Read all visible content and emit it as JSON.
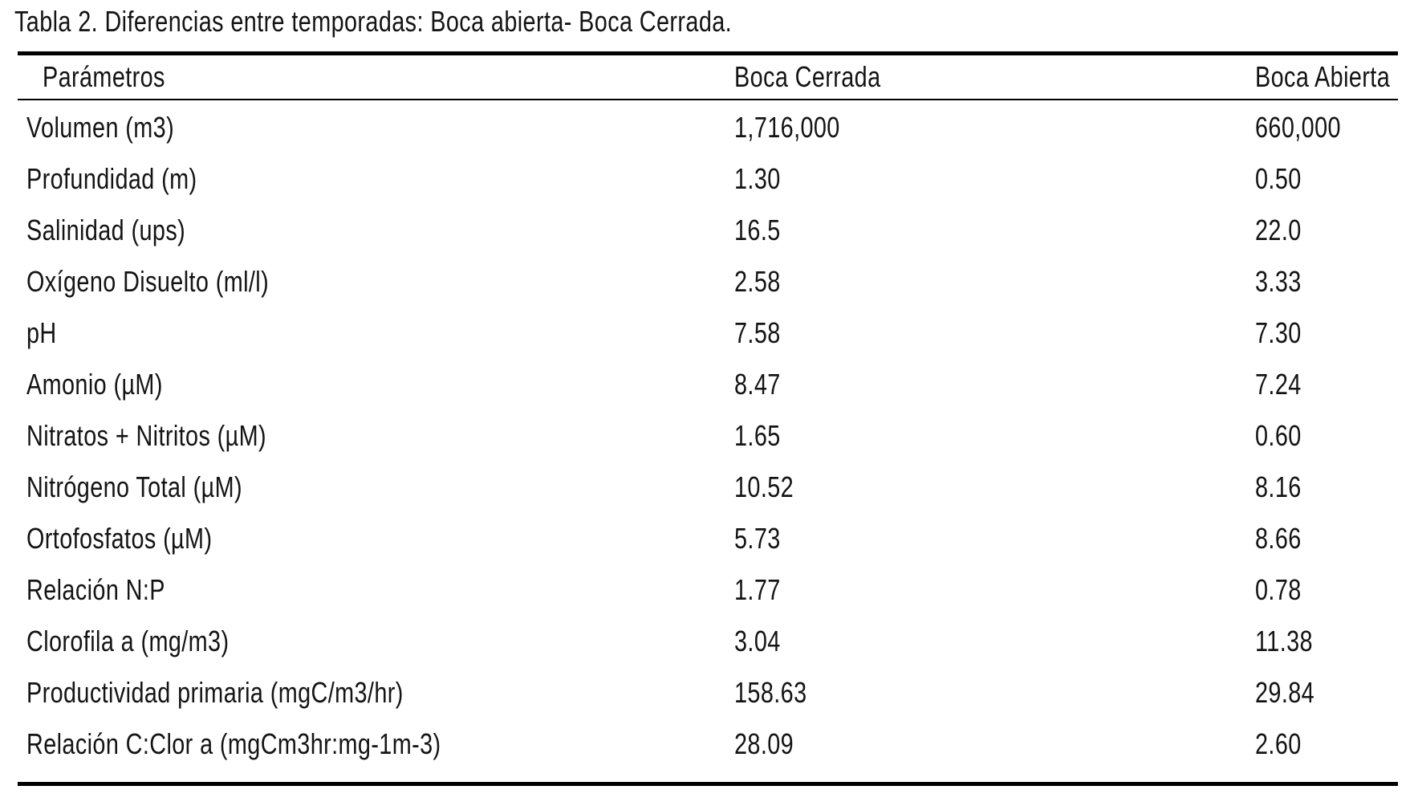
{
  "page": {
    "title": "Tabla 2. Diferencias entre temporadas: Boca abierta- Boca Cerrada."
  },
  "table": {
    "columns": [
      "Parámetros",
      "Boca Cerrada",
      "Boca Abierta"
    ],
    "rows": [
      {
        "param": "Volumen (m3)",
        "cerrada": "1,716,000",
        "abierta": "660,000"
      },
      {
        "param": "Profundidad (m)",
        "cerrada": "1.30",
        "abierta": "0.50"
      },
      {
        "param": "Salinidad (ups)",
        "cerrada": "16.5",
        "abierta": "22.0"
      },
      {
        "param": "Oxígeno Disuelto (ml/l)",
        "cerrada": "2.58",
        "abierta": "3.33"
      },
      {
        "param": "pH",
        "cerrada": "7.58",
        "abierta": "7.30"
      },
      {
        "param": "Amonio (µM)",
        "cerrada": "8.47",
        "abierta": "7.24"
      },
      {
        "param": "Nitratos + Nitritos (µM)",
        "cerrada": "1.65",
        "abierta": "0.60"
      },
      {
        "param": "Nitrógeno Total (µM)",
        "cerrada": "10.52",
        "abierta": "8.16"
      },
      {
        "param": "Ortofosfatos (µM)",
        "cerrada": "5.73",
        "abierta": "8.66"
      },
      {
        "param": "Relación N:P",
        "cerrada": "1.77",
        "abierta": "0.78"
      },
      {
        "param": "Clorofila a (mg/m3)",
        "cerrada": "3.04",
        "abierta": "11.38"
      },
      {
        "param": "Productividad primaria (mgC/m3/hr)",
        "cerrada": "158.63",
        "abierta": "29.84"
      },
      {
        "param": "Relación C:Clor a (mgCm3hr:mg-1m-3)",
        "cerrada": "28.09",
        "abierta": "2.60"
      }
    ]
  },
  "chart_data": {
    "type": "table",
    "title": "Tabla 2. Diferencias entre temporadas: Boca abierta- Boca Cerrada.",
    "columns": [
      "Parámetros",
      "Boca Cerrada",
      "Boca Abierta"
    ],
    "rows": [
      [
        "Volumen (m3)",
        "1,716,000",
        "660,000"
      ],
      [
        "Profundidad (m)",
        "1.30",
        "0.50"
      ],
      [
        "Salinidad (ups)",
        "16.5",
        "22.0"
      ],
      [
        "Oxígeno Disuelto (ml/l)",
        "2.58",
        "3.33"
      ],
      [
        "pH",
        "7.58",
        "7.30"
      ],
      [
        "Amonio (µM)",
        "8.47",
        "7.24"
      ],
      [
        "Nitratos + Nitritos (µM)",
        "1.65",
        "0.60"
      ],
      [
        "Nitrógeno Total (µM)",
        "10.52",
        "8.16"
      ],
      [
        "Ortofosfatos (µM)",
        "5.73",
        "8.66"
      ],
      [
        "Relación N:P",
        "1.77",
        "0.78"
      ],
      [
        "Clorofila a (mg/m3)",
        "3.04",
        "11.38"
      ],
      [
        "Productividad primaria (mgC/m3/hr)",
        "158.63",
        "29.84"
      ],
      [
        "Relación C:Clor a (mgCm3hr:mg-1m-3)",
        "28.09",
        "2.60"
      ]
    ]
  },
  "colors": {
    "background": "#ffffff",
    "text": "#141414",
    "rule": "#000000"
  }
}
